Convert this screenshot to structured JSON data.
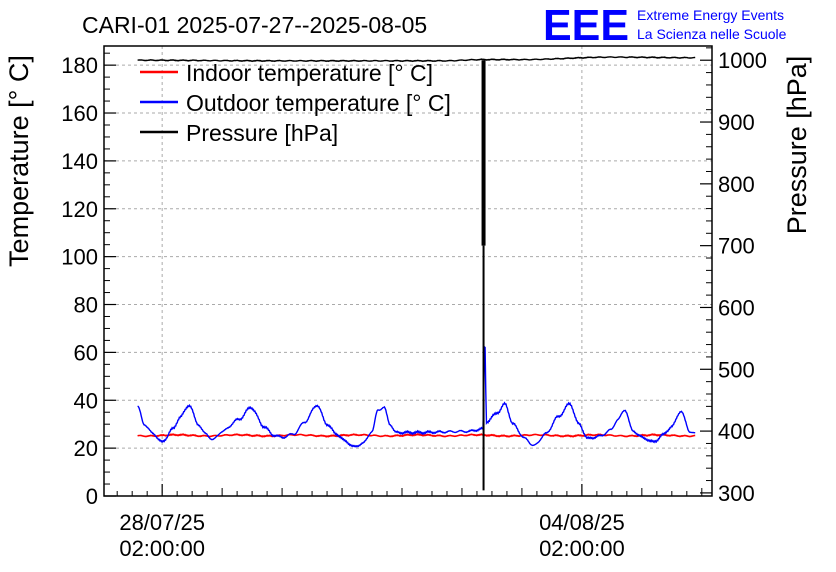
{
  "chart_data": {
    "type": "line",
    "title": "CARI-01 2025-07-27--2025-08-05",
    "logo": {
      "text": "EEE",
      "line1": "Extreme Energy Events",
      "line2": "La Scienza nelle Scuole",
      "color": "#0000ff"
    },
    "ylabel": "Temperature [° C]",
    "y2label": "Pressure [hPa]",
    "x_range_days": [
      -0.97,
      9.17
    ],
    "ylim": [
      0,
      188
    ],
    "y2lim": [
      295,
      1023
    ],
    "yticks": [
      0,
      20,
      40,
      60,
      80,
      100,
      120,
      140,
      160,
      180
    ],
    "y2ticks": [
      300,
      400,
      500,
      600,
      700,
      800,
      900,
      1000
    ],
    "xticks": [
      {
        "day": 0,
        "line1": "28/07/25",
        "line2": "02:00:00"
      },
      {
        "day": 7,
        "line1": "04/08/25",
        "line2": "02:00:00"
      }
    ],
    "grid": true,
    "legend_position": "top-left",
    "series": [
      {
        "name": "Indoor temperature [° C]",
        "axis": "left",
        "color": "#ff0000",
        "baseline": 25.3,
        "amplitude": 0.3
      },
      {
        "name": "Outdoor temperature [° C]",
        "axis": "left",
        "color": "#0000ff",
        "anchors": [
          [
            -0.41,
            37.5
          ],
          [
            -0.3,
            30
          ],
          [
            -0.15,
            26
          ],
          [
            0,
            22.5
          ],
          [
            0.18,
            28
          ],
          [
            0.3,
            33
          ],
          [
            0.45,
            38
          ],
          [
            0.6,
            30
          ],
          [
            0.72,
            26
          ],
          [
            0.85,
            23.5
          ],
          [
            1,
            27
          ],
          [
            1.28,
            32
          ],
          [
            1.48,
            37
          ],
          [
            1.7,
            29
          ],
          [
            1.85,
            25.5
          ],
          [
            2,
            24.5
          ],
          [
            2.2,
            26
          ],
          [
            2.38,
            31
          ],
          [
            2.58,
            38
          ],
          [
            2.75,
            30
          ],
          [
            2.9,
            26
          ],
          [
            3.05,
            23
          ],
          [
            3.2,
            20.5
          ],
          [
            3.35,
            22
          ],
          [
            3.5,
            27
          ],
          [
            3.6,
            36
          ],
          [
            3.7,
            37
          ],
          [
            3.8,
            30
          ],
          [
            3.9,
            26.5
          ],
          [
            4.2,
            26.5
          ],
          [
            5.1,
            27
          ],
          [
            5.35,
            28
          ],
          [
            5.38,
            66
          ],
          [
            5.41,
            31
          ],
          [
            5.6,
            35
          ],
          [
            5.72,
            38.5
          ],
          [
            5.85,
            30
          ],
          [
            6.05,
            24
          ],
          [
            6.2,
            21
          ],
          [
            6.4,
            26
          ],
          [
            6.6,
            33
          ],
          [
            6.8,
            38.5
          ],
          [
            6.95,
            30
          ],
          [
            7.1,
            24
          ],
          [
            7.3,
            25
          ],
          [
            7.48,
            27.5
          ],
          [
            7.6,
            32
          ],
          [
            7.72,
            36
          ],
          [
            7.85,
            27
          ],
          [
            8.05,
            24
          ],
          [
            8.2,
            22.5
          ],
          [
            8.35,
            25.5
          ],
          [
            8.5,
            29
          ],
          [
            8.65,
            35.5
          ],
          [
            8.8,
            27
          ],
          [
            8.9,
            26
          ]
        ]
      },
      {
        "name": "Pressure [hPa]",
        "axis": "right",
        "color": "#000000",
        "anchors": [
          [
            -0.41,
            1000
          ],
          [
            2,
            999
          ],
          [
            3.5,
            999
          ],
          [
            4.7,
            999
          ],
          [
            5.33,
            1001
          ],
          [
            6,
            1001
          ],
          [
            7.5,
            1005
          ],
          [
            8.9,
            1004
          ]
        ],
        "drop_day": 5.36,
        "drop_band_hpa": [
          700,
          1000
        ],
        "drop_min_hpa": 304
      }
    ]
  }
}
